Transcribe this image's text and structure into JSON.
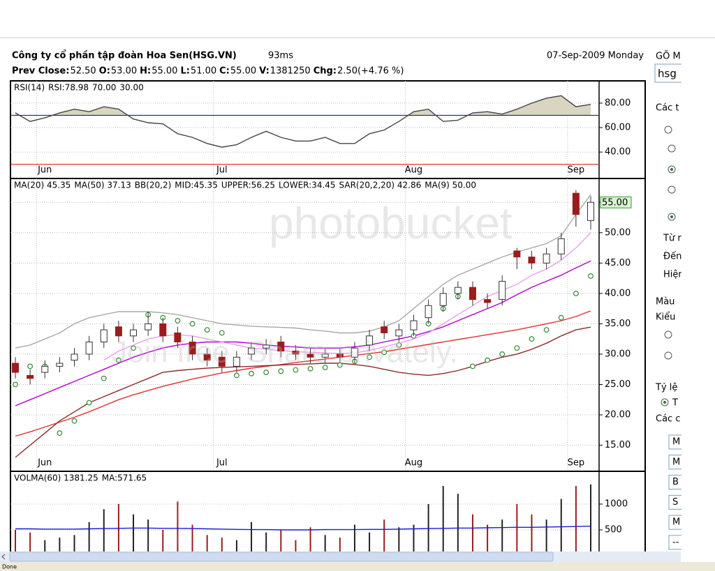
{
  "header": {
    "company": "Công ty cổ phần tập đoàn Hoa Sen(HSG.VN)",
    "latency": "93ms",
    "date": "07-Sep-2009 Monday",
    "quote": [
      {
        "label": "Prev Close:",
        "value": "52.50"
      },
      {
        "label": "O:",
        "value": "53.00"
      },
      {
        "label": "H:",
        "value": "55.00"
      },
      {
        "label": "L:",
        "value": "51.00"
      },
      {
        "label": "C:",
        "value": "55.00"
      },
      {
        "label": "V:",
        "value": "1381250"
      },
      {
        "label": "Chg:",
        "value": "2.50(+4.76 %)",
        "value_color": "#008000"
      }
    ]
  },
  "chart_data": [
    {
      "type": "line",
      "indicator": "RSI(14)",
      "categories": [
        null,
        null,
        "Jun",
        null,
        null,
        null,
        null,
        null,
        null,
        null,
        null,
        null,
        null,
        null,
        "Jul",
        null,
        null,
        null,
        null,
        null,
        null,
        null,
        null,
        null,
        null,
        null,
        null,
        "Aug",
        null,
        null,
        null,
        null,
        null,
        null,
        null,
        null,
        null,
        null,
        "Sep",
        null
      ],
      "series": [
        {
          "name": "RSI:78.98",
          "color": "#444444",
          "fill": "#d9d5c0",
          "values": [
            72,
            65,
            68,
            72,
            75,
            73,
            77,
            75,
            67,
            64,
            63,
            55,
            52,
            47,
            44,
            46,
            52,
            57,
            52,
            49,
            49,
            52,
            47,
            47,
            55,
            58,
            65,
            73,
            75,
            65,
            66,
            72,
            73,
            71,
            75,
            80,
            84,
            86,
            77,
            78.98
          ]
        }
      ],
      "levels": [
        {
          "value": 70,
          "label": "70.00",
          "color": "#1c1cb0"
        },
        {
          "value": 30,
          "label": "30.00",
          "color": "#e02020"
        }
      ],
      "ylim": [
        19,
        97
      ],
      "yticks": [
        {
          "value": 40,
          "label": "40.00"
        },
        {
          "value": 60,
          "label": "60.00"
        },
        {
          "value": 80,
          "label": "80.00"
        }
      ],
      "grid": true
    },
    {
      "type": "candlestick",
      "categories": [
        null,
        null,
        "Jun",
        null,
        null,
        null,
        null,
        null,
        null,
        null,
        null,
        null,
        null,
        null,
        "Jul",
        null,
        null,
        null,
        null,
        null,
        null,
        null,
        null,
        null,
        null,
        null,
        null,
        "Aug",
        null,
        null,
        null,
        null,
        null,
        null,
        null,
        null,
        null,
        null,
        "Sep",
        null
      ],
      "candles": {
        "up_color": "#ffffff",
        "down_color": "#9b1c1c",
        "open": [
          28.5,
          26.5,
          27,
          28,
          29,
          30,
          32,
          34.5,
          33,
          34,
          35,
          33.5,
          32,
          30,
          29.5,
          28,
          30,
          31,
          32,
          30.5,
          30,
          29.5,
          30,
          29.5,
          31.5,
          34.5,
          33,
          34,
          36,
          38,
          40,
          41,
          39,
          39,
          47,
          46,
          45,
          46.5,
          56.5,
          52
        ],
        "high": [
          29.5,
          27.5,
          29,
          29.5,
          31,
          33,
          35,
          35.5,
          35,
          37,
          36,
          34.5,
          33,
          31,
          30.5,
          30.5,
          32,
          32.5,
          33,
          31.5,
          31,
          31,
          31,
          32,
          34,
          35.5,
          35,
          36.5,
          39,
          41,
          42,
          42,
          40,
          43,
          47.5,
          47,
          47.5,
          50,
          57,
          56
        ],
        "low": [
          26,
          25,
          26,
          27,
          28,
          29,
          31,
          32,
          32,
          33,
          32,
          31,
          29,
          28,
          27,
          27,
          29,
          30,
          29.5,
          29,
          28.5,
          28.5,
          28.5,
          28.5,
          30.5,
          32.5,
          32,
          33,
          35,
          37,
          39,
          38,
          37.5,
          38,
          44,
          44,
          44,
          45.5,
          51,
          50.5
        ],
        "close": [
          27,
          26,
          28,
          28.5,
          30,
          32,
          34,
          33,
          34,
          35,
          33,
          32,
          30,
          29,
          28,
          29.5,
          31,
          31.5,
          30.5,
          30,
          29.5,
          30,
          29.5,
          31,
          33,
          33.5,
          34,
          35.5,
          38,
          40,
          41,
          39,
          38.5,
          42,
          46,
          45,
          46.5,
          49,
          53,
          55
        ]
      },
      "series": [
        {
          "name": "MA(20) 45.35",
          "color": "#1c1cd0"
        },
        {
          "name": "MA(50) 37.13",
          "color": "#e03030",
          "values": [
            16.5,
            17.2,
            18,
            18.8,
            19.6,
            20.5,
            21.5,
            22.5,
            23.3,
            24,
            24.7,
            25.3,
            25.9,
            26.4,
            26.9,
            27.3,
            27.7,
            28,
            28.3,
            28.6,
            28.9,
            29.2,
            29.5,
            29.8,
            30.1,
            30.4,
            30.8,
            31.2,
            31.6,
            32,
            32.4,
            32.8,
            33.2,
            33.6,
            34,
            34.5,
            35,
            35.5,
            36.2,
            37.13
          ]
        },
        {
          "name": "BB(20,2)",
          "color": "#8b2a2a"
        },
        {
          "name": "MID:45.35",
          "color": "#b000d0",
          "values": [
            21.5,
            22.5,
            23.5,
            24.5,
            25.5,
            26.5,
            27.5,
            28.5,
            29.5,
            30.3,
            31,
            31.5,
            31.8,
            32,
            32,
            32,
            31.8,
            31.5,
            31.3,
            31.2,
            31,
            31,
            31,
            31.2,
            31.5,
            32,
            32.5,
            33,
            33.7,
            34.5,
            35.5,
            36.5,
            37.5,
            38.5,
            39.8,
            41,
            42,
            43,
            44.2,
            45.35
          ]
        },
        {
          "name": "UPPER:56.25",
          "color": "#a8a8a8",
          "values": [
            31,
            31.5,
            32.5,
            33.5,
            35,
            36,
            36.5,
            37,
            37,
            37,
            36.8,
            36.5,
            36,
            35.5,
            35,
            34.8,
            34.6,
            34.5,
            34.4,
            34.3,
            34,
            33.8,
            33.5,
            33.5,
            33.8,
            34.5,
            35.5,
            37.5,
            39.5,
            41.5,
            43,
            44,
            45,
            46,
            46.8,
            47.5,
            48.2,
            49.5,
            53,
            56.25
          ]
        },
        {
          "name": "LOWER:34.45",
          "color": "#8b2a2a",
          "values": [
            13,
            15,
            17,
            19,
            20.5,
            22,
            23,
            24,
            25,
            26,
            27,
            27.3,
            27.5,
            27.7,
            27.8,
            27.9,
            28,
            28.1,
            28.2,
            28.3,
            28.4,
            28.5,
            28.5,
            28.3,
            28,
            27.5,
            27,
            26.7,
            26.5,
            26.8,
            27.3,
            28,
            28.8,
            29.5,
            30,
            30.8,
            31.8,
            33,
            34,
            34.45
          ]
        },
        {
          "name": "SAR(20,2,20) 42.86",
          "color": "#2e8b2e",
          "marker": "circle",
          "values": [
            25,
            28,
            28,
            17,
            19,
            22,
            26,
            29,
            31,
            36.5,
            36,
            35.5,
            35,
            34,
            33.5,
            26.5,
            26.8,
            27,
            27.2,
            27.4,
            27.6,
            27.8,
            28.2,
            28.8,
            29.5,
            30.3,
            31.5,
            33,
            35,
            37.5,
            39.5,
            28,
            29,
            30,
            31,
            32.5,
            34,
            36,
            40,
            42.86
          ]
        },
        {
          "name": "MA(9) 50.00",
          "color": "#e6a0e6",
          "values": [
            null,
            null,
            null,
            null,
            null,
            null,
            29,
            30.5,
            31.5,
            32.5,
            33,
            33.2,
            33,
            32.5,
            32,
            31.5,
            31,
            30.8,
            30.6,
            30.4,
            30.3,
            30.2,
            30.1,
            30.2,
            30.6,
            31.2,
            31.8,
            32.5,
            33.5,
            35,
            36.5,
            38,
            39.5,
            40.5,
            41.5,
            43,
            44,
            45.5,
            47.5,
            50
          ]
        }
      ],
      "last_price": {
        "value": 55,
        "label": "55.00",
        "color": "#2e9e2e"
      },
      "ylim": [
        13,
        58.7
      ],
      "yticks": [
        {
          "value": 15,
          "label": "15.00"
        },
        {
          "value": 20,
          "label": "20.00"
        },
        {
          "value": 25,
          "label": "25.00"
        },
        {
          "value": 30,
          "label": "30.00"
        },
        {
          "value": 35,
          "label": "35.00"
        },
        {
          "value": 40,
          "label": "40.00"
        },
        {
          "value": 45,
          "label": "45.00"
        },
        {
          "value": 50,
          "label": "50.00"
        },
        {
          "value": 55,
          "label": "55.00"
        }
      ],
      "grid": true
    },
    {
      "type": "bar",
      "series": [
        {
          "name": "VOLMA(60) 1381.25",
          "color": "#000000",
          "style": "bar",
          "up_color": "#222222",
          "down_color": "#9b1c1c",
          "values": [
            500,
            450,
            300,
            350,
            400,
            650,
            900,
            1000,
            800,
            700,
            500,
            1050,
            600,
            400,
            350,
            300,
            650,
            450,
            500,
            300,
            550,
            400,
            350,
            600,
            450,
            700,
            550,
            600,
            1000,
            1350,
            1200,
            800,
            600,
            700,
            1000,
            800,
            700,
            1100,
            1350,
            1381.25
          ]
        },
        {
          "name": "MA:571.65",
          "color": "#1c1cd0",
          "values": [
            520,
            520,
            515,
            515,
            515,
            520,
            525,
            530,
            535,
            535,
            530,
            530,
            525,
            520,
            515,
            510,
            505,
            505,
            500,
            500,
            500,
            505,
            505,
            505,
            510,
            510,
            515,
            520,
            525,
            530,
            535,
            535,
            540,
            545,
            550,
            550,
            555,
            560,
            565,
            571.65
          ]
        }
      ],
      "ylim": [
        0,
        1608
      ],
      "yticks": [
        500,
        1000
      ],
      "grid": true
    }
  ],
  "sidebar": {
    "title": "GÕ M",
    "input": "hsg",
    "section1": "Các t",
    "labels": [
      "Từ r",
      "Đến",
      "Hiện"
    ],
    "color": "Màu",
    "style": "Kiểu",
    "ratio": "Tỷ lệ",
    "ratio_option": "T",
    "section2": "Các c",
    "options": [
      "M",
      "M",
      "B",
      "S",
      "M",
      "--"
    ]
  },
  "watermark": {
    "brand": "photobucket",
    "slogan": "Join free. Share privately."
  },
  "status": "Done"
}
